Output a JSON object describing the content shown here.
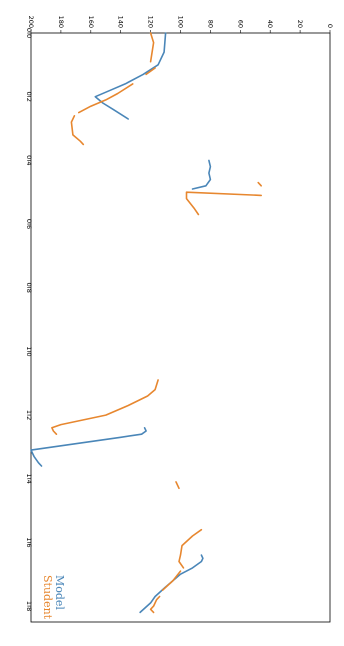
{
  "chart_data": {
    "type": "line",
    "orientation": "rotated-90-clockwise",
    "title": "",
    "xlabel": "",
    "ylabel": "",
    "xlim": [
      0.0,
      1.85
    ],
    "ylim": [
      0,
      200
    ],
    "xticks": [
      "0.0",
      "0.2",
      "0.4",
      "0.6",
      "0.8",
      "1.0",
      "1.2",
      "1.4",
      "1.6",
      "1.8"
    ],
    "yticks": [
      "0",
      "20",
      "40",
      "60",
      "80",
      "100",
      "120",
      "140",
      "160",
      "180",
      "200"
    ],
    "grid": false,
    "legend_position": "bottom-left",
    "series": [
      {
        "name": "Model",
        "color": "#4a86b8",
        "segments": [
          [
            [
              0.0,
              110
            ],
            [
              0.06,
              111
            ],
            [
              0.1,
              115
            ],
            [
              0.13,
              125
            ],
            [
              0.16,
              137
            ],
            [
              0.18,
              147
            ],
            [
              0.2,
              157
            ],
            [
              0.22,
              152
            ],
            [
              0.24,
              145
            ],
            [
              0.27,
              135
            ]
          ],
          [
            [
              0.4,
              81
            ],
            [
              0.42,
              80
            ],
            [
              0.44,
              81
            ],
            [
              0.46,
              80
            ],
            [
              0.48,
              83
            ],
            [
              0.49,
              92
            ]
          ],
          [
            [
              1.24,
              124
            ],
            [
              1.25,
              123
            ],
            [
              1.26,
              126
            ],
            [
              1.27,
              140
            ],
            [
              1.29,
              170
            ],
            [
              1.31,
              200
            ],
            [
              1.33,
              198
            ],
            [
              1.35,
              195
            ],
            [
              1.36,
              193
            ]
          ],
          [
            [
              1.64,
              86
            ],
            [
              1.65,
              85
            ],
            [
              1.66,
              86
            ],
            [
              1.68,
              92
            ],
            [
              1.7,
              100
            ],
            [
              1.74,
              110
            ],
            [
              1.77,
              117
            ],
            [
              1.79,
              120
            ],
            [
              1.82,
              127
            ]
          ]
        ]
      },
      {
        "name": "Student",
        "color": "#e7872f",
        "segments": [
          [
            [
              0.0,
              120
            ],
            [
              0.03,
              118
            ],
            [
              0.06,
              119
            ],
            [
              0.09,
              120
            ]
          ],
          [
            [
              0.11,
              117
            ],
            [
              0.13,
              123
            ]
          ],
          [
            [
              0.16,
              132
            ],
            [
              0.19,
              142
            ],
            [
              0.21,
              150
            ],
            [
              0.23,
              160
            ],
            [
              0.25,
              168
            ]
          ],
          [
            [
              0.26,
              171
            ],
            [
              0.28,
              173
            ],
            [
              0.32,
              172
            ],
            [
              0.34,
              167
            ],
            [
              0.35,
              165
            ]
          ],
          [
            [
              0.47,
              48
            ],
            [
              0.48,
              46
            ]
          ],
          [
            [
              0.51,
              46
            ],
            [
              0.5,
              96
            ],
            [
              0.52,
              96
            ],
            [
              0.55,
              91
            ],
            [
              0.57,
              88
            ]
          ],
          [
            [
              1.09,
              115
            ],
            [
              1.12,
              117
            ],
            [
              1.14,
              122
            ],
            [
              1.17,
              135
            ],
            [
              1.2,
              150
            ],
            [
              1.23,
              180
            ],
            [
              1.24,
              186
            ],
            [
              1.25,
              185
            ],
            [
              1.26,
              183
            ]
          ],
          [
            [
              1.41,
              103
            ],
            [
              1.43,
              101
            ]
          ],
          [
            [
              1.56,
              86
            ],
            [
              1.58,
              92
            ],
            [
              1.61,
              99
            ],
            [
              1.64,
              100
            ],
            [
              1.66,
              101
            ],
            [
              1.68,
              98
            ]
          ],
          [
            [
              1.69,
              100
            ],
            [
              1.72,
              105
            ],
            [
              1.75,
              112
            ]
          ],
          [
            [
              1.77,
              114
            ],
            [
              1.78,
              116
            ],
            [
              1.8,
              118
            ],
            [
              1.81,
              120
            ],
            [
              1.82,
              118
            ]
          ]
        ]
      }
    ]
  }
}
